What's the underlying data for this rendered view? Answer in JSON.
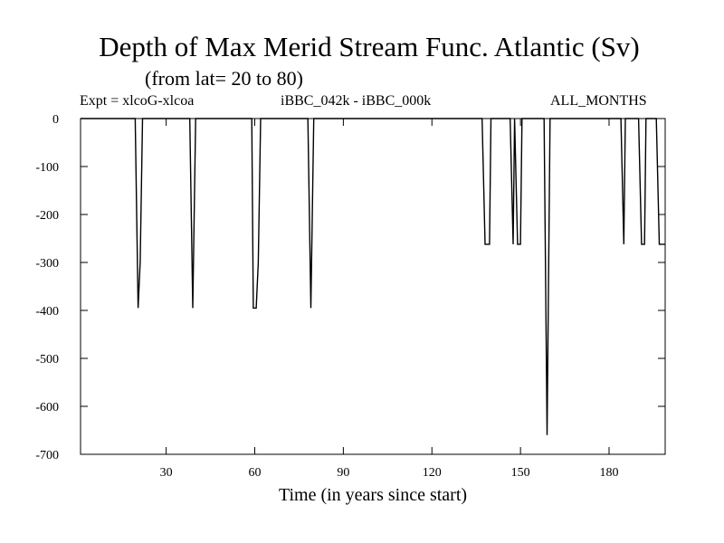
{
  "chart_data": {
    "type": "line",
    "title": "Depth of Max Merid Stream Func. Atlantic (Sv)",
    "subtitle": "(from lat= 20 to 80)",
    "header_left": "Expt = xlcoG-xlcoa",
    "header_center": "iBBC_042k - iBBC_000k",
    "header_right": "ALL_MONTHS",
    "xlabel": "Time (in years since start)",
    "ylabel": "",
    "xlim": [
      1,
      199
    ],
    "ylim": [
      -700,
      0
    ],
    "xticks": [
      30,
      60,
      90,
      120,
      150,
      180
    ],
    "yticks": [
      0,
      -100,
      -200,
      -300,
      -400,
      -500,
      -600,
      -700
    ],
    "grid": false,
    "series": [
      {
        "x": [
          1,
          19.5,
          20.5,
          21.2,
          22,
          38,
          39,
          40,
          59,
          59.5,
          60.5,
          61.2,
          62,
          78,
          79,
          80,
          137,
          138,
          139.5,
          140,
          146.5,
          147.5,
          148,
          149,
          150,
          150.5,
          158,
          159,
          160,
          160.5,
          184,
          185,
          185.5,
          190,
          191,
          192,
          192.5,
          196,
          197,
          199
        ],
        "y": [
          0,
          0,
          -395,
          -300,
          0,
          0,
          -395,
          0,
          0,
          -395,
          -395,
          -300,
          0,
          0,
          -395,
          0,
          0,
          -262,
          -262,
          0,
          0,
          -262,
          0,
          -262,
          -262,
          0,
          0,
          -660,
          0,
          0,
          0,
          -262,
          0,
          0,
          -262,
          -262,
          0,
          0,
          -262,
          -262
        ]
      }
    ]
  }
}
